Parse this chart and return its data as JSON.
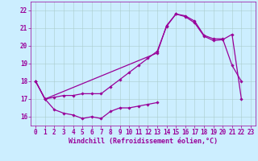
{
  "title": "",
  "xlabel": "Windchill (Refroidissement éolien,°C)",
  "ylabel": "",
  "xlim": [
    -0.5,
    23.5
  ],
  "ylim": [
    15.5,
    22.5
  ],
  "yticks": [
    16,
    17,
    18,
    19,
    20,
    21,
    22
  ],
  "xticks": [
    0,
    1,
    2,
    3,
    4,
    5,
    6,
    7,
    8,
    9,
    10,
    11,
    12,
    13,
    14,
    15,
    16,
    17,
    18,
    19,
    20,
    21,
    22,
    23
  ],
  "background_color": "#cceeff",
  "grid_color": "#aacccc",
  "line_color": "#990099",
  "series": [
    [
      18.0,
      17.0,
      16.4,
      16.2,
      16.1,
      15.9,
      16.0,
      15.9,
      16.3,
      16.5,
      16.5,
      16.6,
      16.7,
      16.8,
      null,
      null,
      null,
      null,
      null,
      null,
      null,
      null,
      null,
      null
    ],
    [
      18.0,
      17.0,
      17.1,
      17.2,
      17.2,
      17.3,
      17.3,
      17.3,
      17.7,
      18.1,
      18.5,
      18.9,
      19.3,
      19.7,
      21.1,
      21.8,
      21.7,
      21.4,
      20.6,
      20.4,
      20.4,
      18.9,
      18.0,
      null
    ],
    [
      18.0,
      17.0,
      null,
      null,
      null,
      null,
      null,
      null,
      null,
      null,
      null,
      null,
      null,
      19.6,
      21.15,
      21.8,
      21.65,
      21.3,
      20.55,
      20.3,
      20.35,
      20.65,
      17.0,
      null
    ]
  ],
  "xlabel_fontsize": 6,
  "tick_fontsize": 5.5,
  "marker_size": 1.8,
  "line_width": 0.9
}
